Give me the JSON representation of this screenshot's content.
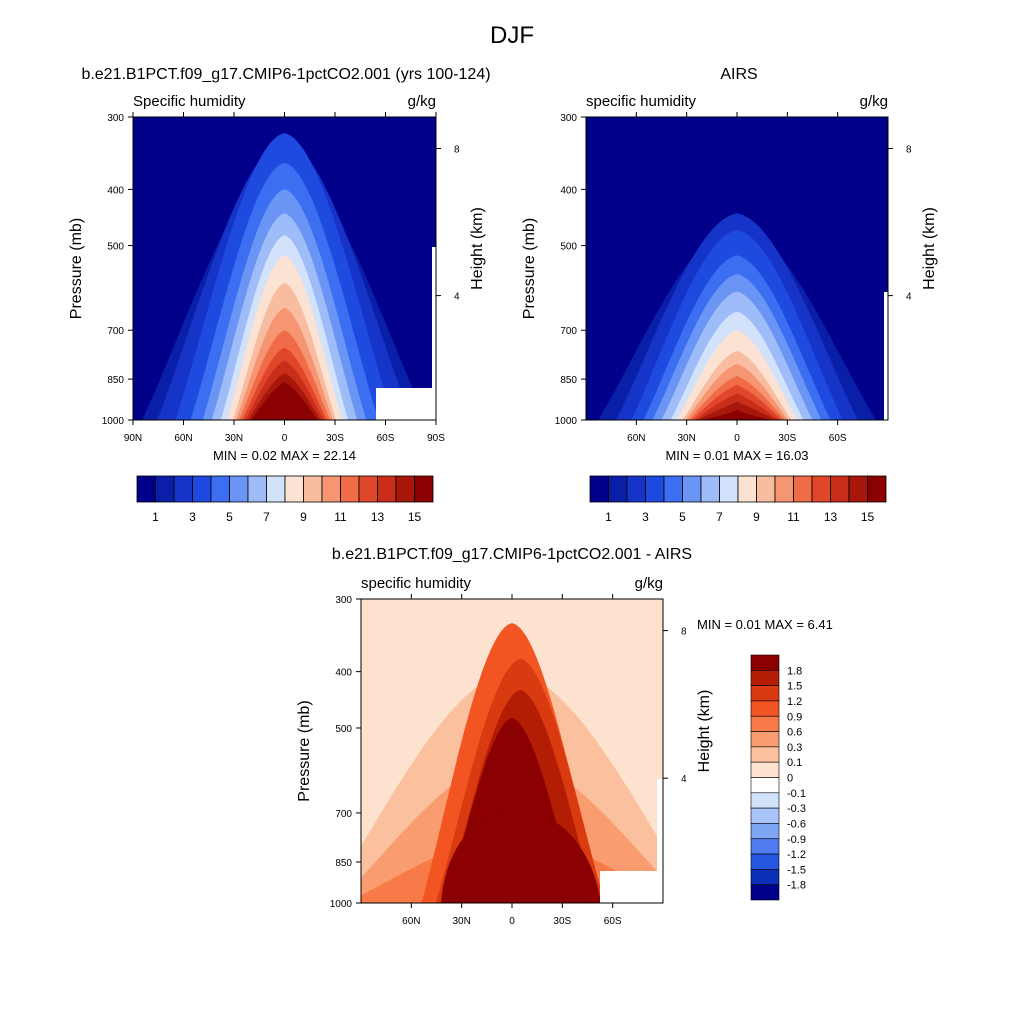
{
  "page": {
    "title": "DJF"
  },
  "chart_data": [
    {
      "type": "heatmap",
      "panel": "model",
      "title": "b.e21.B1PCT.f09_g17.CMIP6-1pctCO2.001 (yrs 100-124)",
      "left_label": "Specific humidity",
      "right_label": "g/kg",
      "ylabel": "Pressure (mb)",
      "ylabel_right": "Height (km)",
      "xticks": [
        "90N",
        "60N",
        "30N",
        "0",
        "30S",
        "60S",
        "90S"
      ],
      "xtick_values": [
        90,
        60,
        30,
        0,
        -30,
        -60,
        -90
      ],
      "xlim": [
        90,
        -90
      ],
      "yticks": [
        300,
        400,
        500,
        700,
        850,
        1000
      ],
      "ylim": [
        1000,
        300
      ],
      "log_pressure_axis": true,
      "height_ticks": [
        8,
        4
      ],
      "min_max_label": "MIN =   0.02  MAX =  22.14",
      "min": 0.02,
      "max": 22.14,
      "peak_pressure_profile": [
        {
          "lat": 90,
          "p": 850
        },
        {
          "lat": 80,
          "p": 850
        },
        {
          "lat": 75,
          "p": 700
        },
        {
          "lat": 60,
          "p": 560
        },
        {
          "lat": 45,
          "p": 490
        },
        {
          "lat": 25,
          "p": 400
        },
        {
          "lat": 10,
          "p": 320
        },
        {
          "lat": 0,
          "p": 305
        },
        {
          "lat": -10,
          "p": 330
        },
        {
          "lat": -30,
          "p": 400
        },
        {
          "lat": -55,
          "p": 480
        },
        {
          "lat": -75,
          "p": 620
        },
        {
          "lat": -85,
          "p": 700
        }
      ],
      "colorbar": {
        "levels": [
          0,
          1,
          2,
          3,
          4,
          5,
          6,
          7,
          8,
          9,
          10,
          11,
          12,
          13,
          14,
          15,
          16
        ],
        "labels": [
          "1",
          "3",
          "5",
          "7",
          "9",
          "11",
          "13",
          "15"
        ],
        "colors": [
          "#00008b",
          "#0a1fa8",
          "#1634c8",
          "#1f4ae0",
          "#3b6ef0",
          "#6a95f5",
          "#9dbcf8",
          "#d3e2fb",
          "#fbe2d3",
          "#f8bca0",
          "#f59572",
          "#f06b48",
          "#e0472a",
          "#c82e1a",
          "#a8180a",
          "#8b0000"
        ]
      }
    },
    {
      "type": "heatmap",
      "panel": "obs",
      "title": "AIRS",
      "left_label": "specific humidity",
      "right_label": "g/kg",
      "ylabel": "Pressure (mb)",
      "ylabel_right": "Height (km)",
      "xticks": [
        "60N",
        "30N",
        "0",
        "30S",
        "60S"
      ],
      "xtick_values": [
        60,
        30,
        0,
        -30,
        -60
      ],
      "xlim": [
        90,
        -90
      ],
      "yticks": [
        300,
        400,
        500,
        700,
        850,
        1000
      ],
      "ylim": [
        1000,
        300
      ],
      "log_pressure_axis": true,
      "height_ticks": [
        8,
        4
      ],
      "min_max_label": "MIN =   0.01  MAX =  16.03",
      "min": 0.01,
      "max": 16.03,
      "colorbar": {
        "levels": [
          0,
          1,
          2,
          3,
          4,
          5,
          6,
          7,
          8,
          9,
          10,
          11,
          12,
          13,
          14,
          15,
          16
        ],
        "labels": [
          "1",
          "3",
          "5",
          "7",
          "9",
          "11",
          "13",
          "15"
        ],
        "colors": [
          "#00008b",
          "#0a1fa8",
          "#1634c8",
          "#1f4ae0",
          "#3b6ef0",
          "#6a95f5",
          "#9dbcf8",
          "#d3e2fb",
          "#fbe2d3",
          "#f8bca0",
          "#f59572",
          "#f06b48",
          "#e0472a",
          "#c82e1a",
          "#a8180a",
          "#8b0000"
        ]
      }
    },
    {
      "type": "heatmap",
      "panel": "difference",
      "title": "b.e21.B1PCT.f09_g17.CMIP6-1pctCO2.001 - AIRS",
      "left_label": "specific humidity",
      "right_label": "g/kg",
      "ylabel": "Pressure (mb)",
      "ylabel_right": "Height (km)",
      "xticks": [
        "60N",
        "30N",
        "0",
        "30S",
        "60S"
      ],
      "xtick_values": [
        60,
        30,
        0,
        -30,
        -60
      ],
      "xlim": [
        90,
        -90
      ],
      "yticks": [
        300,
        400,
        500,
        700,
        850,
        1000
      ],
      "ylim": [
        1000,
        300
      ],
      "log_pressure_axis": true,
      "height_ticks": [
        8,
        4
      ],
      "min_max_label": "MIN =   0.01  MAX =   6.41",
      "min": 0.01,
      "max": 6.41,
      "colorbar": {
        "labels": [
          "1.8",
          "1.5",
          "1.2",
          "0.9",
          "0.6",
          "0.3",
          "0.1",
          "0",
          "-0.1",
          "-0.3",
          "-0.6",
          "-0.9",
          "-1.2",
          "-1.5",
          "-1.8"
        ],
        "colors": [
          "#8b0000",
          "#b31d04",
          "#d93a10",
          "#f25522",
          "#f77a48",
          "#f99d70",
          "#fbc19f",
          "#fde2cf",
          "#ffffff",
          "#d3e2fb",
          "#a9c4f8",
          "#7ea6f5",
          "#4f7af0",
          "#2556e0",
          "#0c2fb8",
          "#00008b"
        ]
      }
    }
  ]
}
